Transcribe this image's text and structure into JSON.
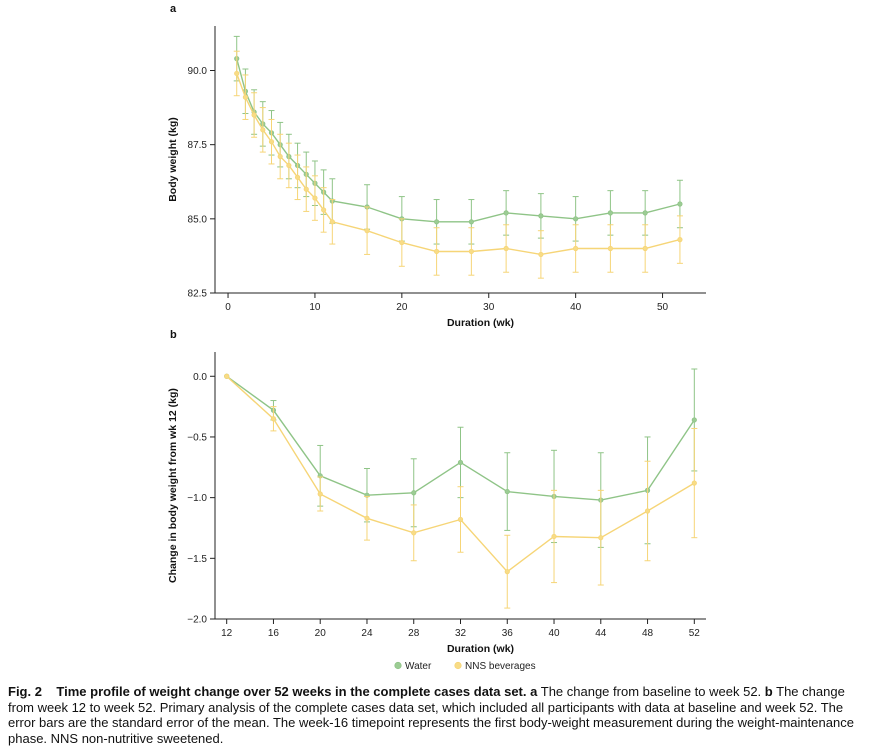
{
  "colors": {
    "water": "#9ccc94",
    "water_line": "#8fc487",
    "nns": "#f8dc86",
    "nns_line": "#f6d577",
    "axis": "#222222"
  },
  "legend": {
    "items": [
      "Water",
      "NNS beverages"
    ],
    "placement": "bottom-center"
  },
  "chart_data": [
    {
      "panel_label": "a",
      "type": "line",
      "xlabel": "Duration (wk)",
      "ylabel": "Body weight (kg)",
      "xlim": [
        -1.5,
        55
      ],
      "ylim": [
        82.5,
        91.5
      ],
      "xticks": [
        0,
        10,
        20,
        30,
        40,
        50
      ],
      "yticks": [
        82.5,
        85.0,
        87.5,
        90.0
      ],
      "ytick_labels": [
        "82.5",
        "85.0",
        "87.5",
        "90.0"
      ],
      "xtick_labels": [
        "0",
        "10",
        "20",
        "30",
        "40",
        "50"
      ],
      "grid": false,
      "series": [
        {
          "name": "Water",
          "x": [
            1,
            2,
            3,
            4,
            5,
            6,
            7,
            8,
            9,
            10,
            11,
            12,
            16,
            20,
            24,
            28,
            32,
            36,
            40,
            44,
            48,
            52
          ],
          "y": [
            90.4,
            89.3,
            88.6,
            88.2,
            87.9,
            87.5,
            87.1,
            86.8,
            86.5,
            86.2,
            85.9,
            85.6,
            85.4,
            85.0,
            84.9,
            84.9,
            85.2,
            85.1,
            85.0,
            85.2,
            85.2,
            85.5
          ],
          "err": [
            0.75,
            0.75,
            0.75,
            0.75,
            0.75,
            0.75,
            0.75,
            0.75,
            0.75,
            0.75,
            0.75,
            0.75,
            0.75,
            0.75,
            0.75,
            0.75,
            0.75,
            0.75,
            0.75,
            0.75,
            0.75,
            0.8
          ]
        },
        {
          "name": "NNS beverages",
          "x": [
            1,
            2,
            3,
            4,
            5,
            6,
            7,
            8,
            9,
            10,
            11,
            12,
            16,
            20,
            24,
            28,
            32,
            36,
            40,
            44,
            48,
            52
          ],
          "y": [
            89.9,
            89.1,
            88.5,
            88.0,
            87.6,
            87.1,
            86.8,
            86.4,
            86.0,
            85.7,
            85.3,
            84.9,
            84.6,
            84.2,
            83.9,
            83.9,
            84.0,
            83.8,
            84.0,
            84.0,
            84.0,
            84.3
          ],
          "err": [
            0.75,
            0.75,
            0.75,
            0.75,
            0.75,
            0.75,
            0.75,
            0.75,
            0.75,
            0.75,
            0.75,
            0.75,
            0.8,
            0.8,
            0.8,
            0.8,
            0.8,
            0.8,
            0.8,
            0.8,
            0.8,
            0.8
          ]
        }
      ]
    },
    {
      "panel_label": "b",
      "type": "line",
      "xlabel": "Duration (wk)",
      "ylabel": "Change in body weight from wk 12 (kg)",
      "xlim": [
        11,
        53
      ],
      "ylim": [
        -2.0,
        0.2
      ],
      "xticks": [
        12,
        16,
        20,
        24,
        28,
        32,
        36,
        40,
        44,
        48,
        52
      ],
      "xtick_labels": [
        "12",
        "16",
        "20",
        "24",
        "28",
        "32",
        "36",
        "40",
        "44",
        "48",
        "52"
      ],
      "yticks": [
        -2.0,
        -1.5,
        -1.0,
        -0.5,
        0.0
      ],
      "ytick_labels": [
        "−2.0",
        "−1.5",
        "−1.0",
        "−0.5",
        "0.0"
      ],
      "grid": false,
      "series": [
        {
          "name": "Water",
          "x": [
            12,
            16,
            20,
            24,
            28,
            32,
            36,
            40,
            44,
            48,
            52
          ],
          "y": [
            0.0,
            -0.28,
            -0.82,
            -0.98,
            -0.96,
            -0.71,
            -0.95,
            -0.99,
            -1.02,
            -0.94,
            -0.36
          ],
          "err": [
            0.0,
            0.08,
            0.25,
            0.22,
            0.28,
            0.29,
            0.32,
            0.38,
            0.39,
            0.44,
            0.42
          ]
        },
        {
          "name": "NNS beverages",
          "x": [
            12,
            16,
            20,
            24,
            28,
            32,
            36,
            40,
            44,
            48,
            52
          ],
          "y": [
            0.0,
            -0.35,
            -0.97,
            -1.17,
            -1.29,
            -1.18,
            -1.61,
            -1.32,
            -1.33,
            -1.11,
            -0.88
          ],
          "err": [
            0.0,
            0.1,
            0.14,
            0.18,
            0.23,
            0.27,
            0.3,
            0.38,
            0.39,
            0.41,
            0.45
          ]
        }
      ]
    }
  ],
  "caption": {
    "fig_label": "Fig. 2",
    "title": "Time profile of weight change over 52 weeks in the complete cases data set.",
    "panel_a_label": "a",
    "panel_a_text": "The change from baseline to week 52.",
    "panel_b_label": "b",
    "panel_b_text": "The change from week 12 to week 52. Primary analysis of the complete cases data set, which included all participants with data at baseline and week 52. The error bars are the standard error of the mean. The week-16 timepoint represents the first body-weight measurement during the weight-maintenance phase. NNS non-nutritive sweetened."
  }
}
